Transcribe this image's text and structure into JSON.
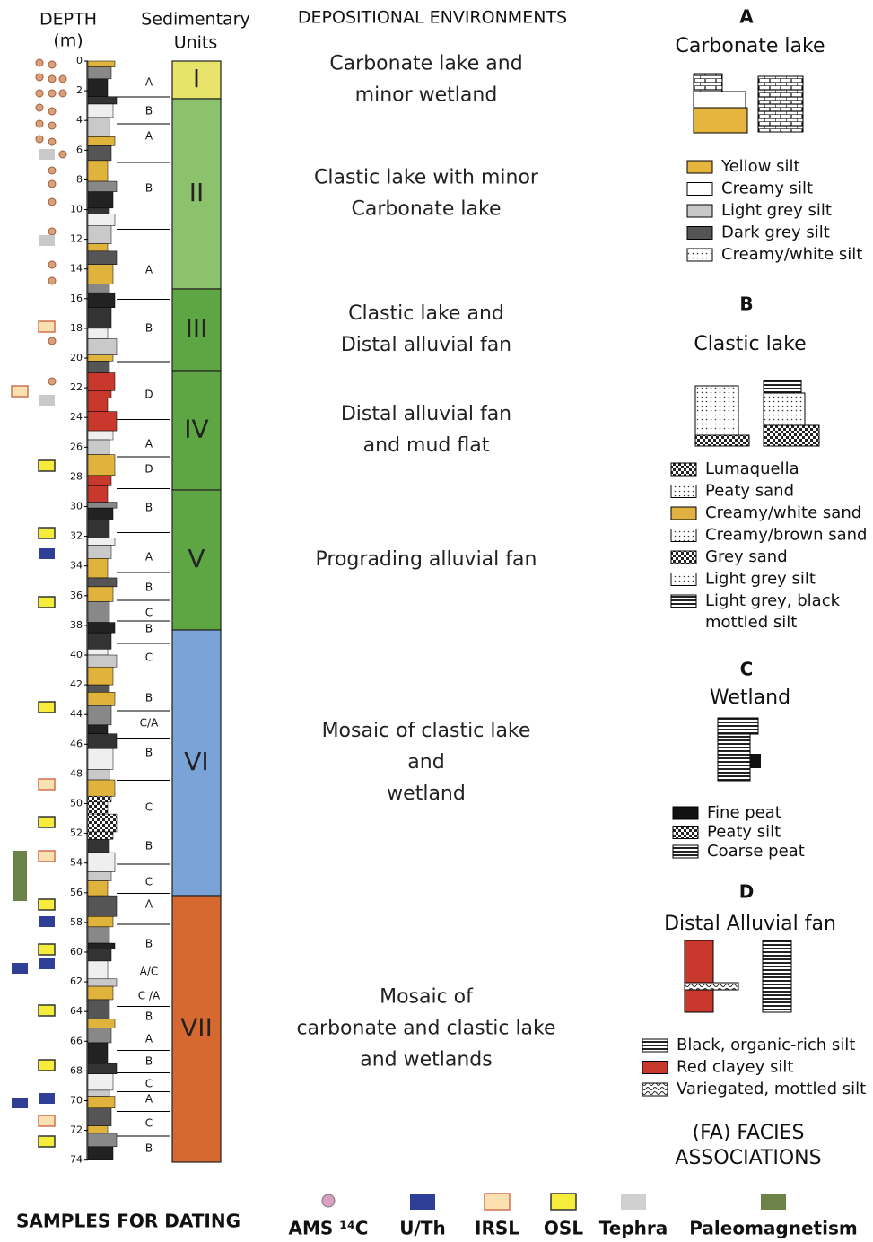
{
  "header": {
    "depth": "DEPTH",
    "depth_unit": "(m)",
    "units_1": "Sedimentary",
    "units_2": "Units",
    "environments": "DEPOSITIONAL ENVIRONMENTS"
  },
  "depth_ticks": [
    0,
    2,
    4,
    6,
    8,
    10,
    12,
    14,
    16,
    18,
    20,
    22,
    24,
    26,
    28,
    30,
    32,
    34,
    36,
    38,
    40,
    42,
    44,
    46,
    48,
    50,
    52,
    54,
    56,
    58,
    60,
    62,
    64,
    66,
    68,
    70,
    72,
    74
  ],
  "facies": [
    "A",
    "B",
    "A",
    "B",
    "A",
    "B",
    "D",
    "A",
    "D",
    "B",
    "A",
    "B",
    "C",
    "B",
    "C",
    "B",
    "C/A",
    "B",
    "C",
    "B",
    "C",
    "A",
    "B",
    "A/C",
    "C /A",
    "B",
    "A",
    "B",
    "C",
    "A",
    "C",
    "B"
  ],
  "units": [
    {
      "label": "I",
      "environment": [
        "Carbonate lake and",
        "minor wetland"
      ]
    },
    {
      "label": "II",
      "environment": [
        "Clastic lake with minor",
        "Carbonate lake"
      ]
    },
    {
      "label": "III",
      "environment": [
        "Clastic lake and",
        "Distal alluvial fan"
      ]
    },
    {
      "label": "IV",
      "environment": [
        "Distal alluvial fan",
        "and mud flat"
      ]
    },
    {
      "label": "V",
      "environment": [
        "Prograding alluvial fan"
      ]
    },
    {
      "label": "VI",
      "environment": [
        "Mosaic of clastic lake",
        "and",
        "wetland"
      ]
    },
    {
      "label": "VII",
      "environment": [
        "Mosaic of",
        "carbonate and clastic lake",
        "and wetlands"
      ]
    }
  ],
  "legend": [
    {
      "letter": "A",
      "title": "Carbonate lake",
      "items": [
        [
          "Yellow silt"
        ],
        [
          "Creamy silt"
        ],
        [
          "Light grey silt"
        ],
        [
          "Dark grey silt"
        ],
        [
          "Creamy/white silt"
        ]
      ]
    },
    {
      "letter": "B",
      "title": "Clastic lake",
      "items": [
        [
          "Lumaquella"
        ],
        [
          "Peaty sand"
        ],
        [
          "Creamy/white sand"
        ],
        [
          "Creamy/brown sand"
        ],
        [
          "Grey sand"
        ],
        [
          "Light grey silt"
        ],
        [
          "Light grey, black",
          "mottled silt"
        ]
      ]
    },
    {
      "letter": "C",
      "title": "Wetland",
      "items": [
        [
          "Fine peat"
        ],
        [
          "Peaty silt"
        ],
        [
          "Coarse peat"
        ]
      ]
    },
    {
      "letter": "D",
      "title": "Distal Alluvial fan",
      "items": [
        [
          "Black, organic-rich silt"
        ],
        [
          "Red clayey silt"
        ],
        [
          "Variegated, mottled silt"
        ]
      ]
    }
  ],
  "facies_associations": [
    "(FA) FACIES",
    "ASSOCIATIONS"
  ],
  "samples": {
    "title": "SAMPLES FOR DATING",
    "items": [
      "AMS ¹⁴C",
      "U/Th",
      "IRSL",
      "OSL",
      "Tephra",
      "Paleomagnetism"
    ]
  }
}
